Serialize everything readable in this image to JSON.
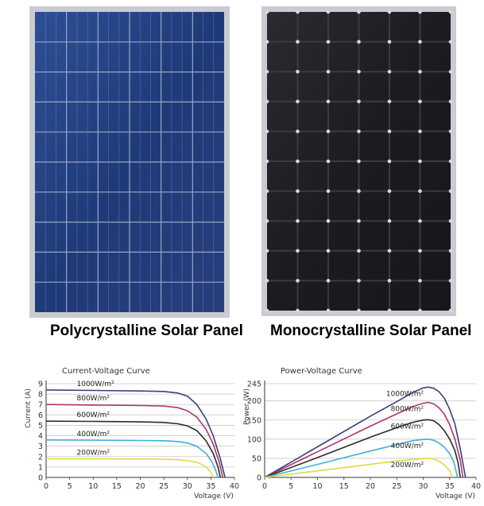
{
  "panels": [
    {
      "caption": "Polycrystalline Solar Panel",
      "color": "#1f3a78"
    },
    {
      "caption": "Monocrystalline Solar Panel",
      "color": "#1b1c20"
    }
  ],
  "chart_data": [
    {
      "type": "line",
      "title": "Current-Voltage Curve",
      "xlabel": "Voltage (V)",
      "ylabel": "Current (A)",
      "xlim": [
        0,
        40
      ],
      "ylim": [
        0,
        9
      ],
      "x_ticks": [
        0,
        5,
        10,
        15,
        20,
        25,
        30,
        35,
        40
      ],
      "y_ticks": [
        0,
        1,
        2,
        3,
        4,
        5,
        6,
        7,
        8,
        9
      ],
      "grid": true,
      "series": [
        {
          "name": "1000W/m²",
          "color": "#3a3f7a",
          "isc": 8.4,
          "voc": 38,
          "x": [
            0,
            10,
            20,
            25,
            28,
            30,
            32,
            34,
            35.5,
            37,
            38
          ],
          "y": [
            8.4,
            8.35,
            8.3,
            8.25,
            8.1,
            7.8,
            7.0,
            5.6,
            4.0,
            1.8,
            0
          ]
        },
        {
          "name": "800W/m²",
          "color": "#b0346e",
          "isc": 7.0,
          "voc": 37.5,
          "x": [
            0,
            10,
            20,
            25,
            28,
            30,
            32,
            34,
            35.5,
            36.8,
            37.5
          ],
          "y": [
            7.0,
            6.95,
            6.9,
            6.85,
            6.7,
            6.4,
            5.8,
            4.6,
            3.2,
            1.4,
            0
          ]
        },
        {
          "name": "600W/m²",
          "color": "#2b2b2b",
          "isc": 5.4,
          "voc": 37,
          "x": [
            0,
            10,
            20,
            25,
            28,
            30,
            32,
            34,
            35.5,
            36.5,
            37
          ],
          "y": [
            5.4,
            5.38,
            5.33,
            5.28,
            5.15,
            4.95,
            4.5,
            3.5,
            2.3,
            1.0,
            0
          ]
        },
        {
          "name": "400W/m²",
          "color": "#3fb1d6",
          "isc": 3.6,
          "voc": 36.5,
          "x": [
            0,
            10,
            20,
            25,
            28,
            30,
            32,
            34,
            35.2,
            36,
            36.5
          ],
          "y": [
            3.6,
            3.58,
            3.55,
            3.52,
            3.45,
            3.3,
            3.0,
            2.3,
            1.5,
            0.7,
            0
          ]
        },
        {
          "name": "200W/m²",
          "color": "#e3d84a",
          "isc": 1.8,
          "voc": 35.5,
          "x": [
            0,
            10,
            20,
            25,
            28,
            30,
            32,
            33.5,
            34.6,
            35.2,
            35.5
          ],
          "y": [
            1.8,
            1.79,
            1.77,
            1.75,
            1.7,
            1.62,
            1.45,
            1.15,
            0.7,
            0.3,
            0
          ]
        }
      ]
    },
    {
      "type": "line",
      "title": "Power-Voltage Curve",
      "xlabel": "Voltage (V)",
      "ylabel": "Power (W)",
      "xlim": [
        0,
        40
      ],
      "ylim": [
        0,
        245
      ],
      "x_ticks": [
        0,
        5,
        10,
        15,
        20,
        25,
        30,
        35,
        40
      ],
      "y_ticks": [
        0,
        50,
        100,
        150,
        200,
        245
      ],
      "grid": true,
      "series": [
        {
          "name": "1000W/m²",
          "color": "#3a3f7a",
          "x": [
            0,
            10,
            20,
            25,
            28,
            30,
            31,
            32,
            33,
            34,
            35,
            36,
            37,
            38
          ],
          "y": [
            0,
            80,
            160,
            198,
            222,
            234,
            236,
            233,
            224,
            207,
            178,
            140,
            75,
            0
          ]
        },
        {
          "name": "800W/m²",
          "color": "#b0346e",
          "x": [
            0,
            10,
            20,
            25,
            28,
            30,
            31,
            32,
            33,
            34,
            35,
            36,
            37,
            37.5
          ],
          "y": [
            0,
            67,
            134,
            166,
            185,
            194,
            196,
            192,
            182,
            165,
            138,
            100,
            45,
            0
          ]
        },
        {
          "name": "600W/m²",
          "color": "#2b2b2b",
          "x": [
            0,
            10,
            20,
            25,
            28,
            30,
            31,
            32,
            33,
            34,
            35,
            36,
            36.6,
            37
          ],
          "y": [
            0,
            52,
            105,
            130,
            144,
            150,
            151,
            148,
            138,
            122,
            100,
            70,
            38,
            0
          ]
        },
        {
          "name": "400W/m²",
          "color": "#3fb1d6",
          "x": [
            0,
            10,
            20,
            25,
            28,
            30,
            31,
            32,
            33,
            34,
            35,
            35.8,
            36.5
          ],
          "y": [
            0,
            34,
            69,
            86,
            96,
            99,
            100,
            97,
            90,
            79,
            62,
            40,
            0
          ]
        },
        {
          "name": "200W/m²",
          "color": "#e3d84a",
          "x": [
            0,
            10,
            20,
            25,
            28,
            30,
            31,
            32,
            33,
            34,
            35,
            35.5
          ],
          "y": [
            0,
            17,
            34,
            43,
            47,
            49,
            50,
            48,
            42,
            33,
            18,
            0
          ]
        }
      ]
    }
  ]
}
